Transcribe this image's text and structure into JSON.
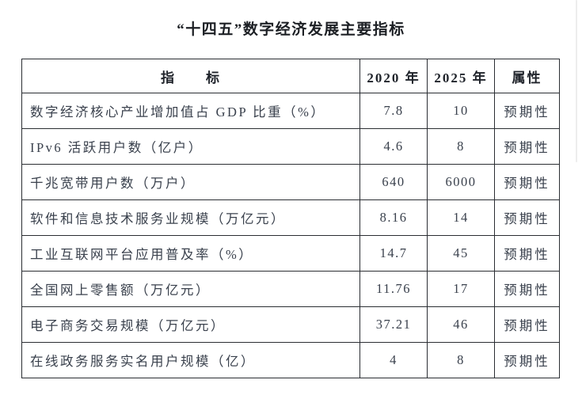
{
  "title": "“十四五”数字经济发展主要指标",
  "table": {
    "headers": {
      "indicator": "指　　标",
      "y2020": "2020 年",
      "y2025": "2025 年",
      "attribute": "属性"
    },
    "rows": [
      {
        "indicator": "数字经济核心产业增加值占 GDP 比重（%）",
        "y2020": "7.8",
        "y2025": "10",
        "attribute": "预期性"
      },
      {
        "indicator": "IPv6 活跃用户数（亿户）",
        "y2020": "4.6",
        "y2025": "8",
        "attribute": "预期性"
      },
      {
        "indicator": "千兆宽带用户数（万户）",
        "y2020": "640",
        "y2025": "6000",
        "attribute": "预期性"
      },
      {
        "indicator": "软件和信息技术服务业规模（万亿元）",
        "y2020": "8.16",
        "y2025": "14",
        "attribute": "预期性"
      },
      {
        "indicator": "工业互联网平台应用普及率（%）",
        "y2020": "14.7",
        "y2025": "45",
        "attribute": "预期性"
      },
      {
        "indicator": "全国网上零售额（万亿元）",
        "y2020": "11.76",
        "y2025": "17",
        "attribute": "预期性"
      },
      {
        "indicator": "电子商务交易规模（万亿元）",
        "y2020": "37.21",
        "y2025": "46",
        "attribute": "预期性"
      },
      {
        "indicator": "在线政务服务实名用户规模（亿）",
        "y2020": "4",
        "y2025": "8",
        "attribute": "预期性"
      }
    ]
  },
  "colors": {
    "background": "#ffffff",
    "border": "#2b2e33",
    "title_text": "#1c1f24",
    "body_text": "#3a414d"
  },
  "chart_data": {
    "type": "table",
    "title": "“十四五”数字经济发展主要指标",
    "columns": [
      "指标",
      "2020 年",
      "2025 年",
      "属性"
    ],
    "rows": [
      [
        "数字经济核心产业增加值占 GDP 比重（%）",
        7.8,
        10,
        "预期性"
      ],
      [
        "IPv6 活跃用户数（亿户）",
        4.6,
        8,
        "预期性"
      ],
      [
        "千兆宽带用户数（万户）",
        640,
        6000,
        "预期性"
      ],
      [
        "软件和信息技术服务业规模（万亿元）",
        8.16,
        14,
        "预期性"
      ],
      [
        "工业互联网平台应用普及率（%）",
        14.7,
        45,
        "预期性"
      ],
      [
        "全国网上零售额（万亿元）",
        11.76,
        17,
        "预期性"
      ],
      [
        "电子商务交易规模（万亿元）",
        37.21,
        46,
        "预期性"
      ],
      [
        "在线政务服务实名用户规模（亿）",
        4,
        8,
        "预期性"
      ]
    ]
  }
}
